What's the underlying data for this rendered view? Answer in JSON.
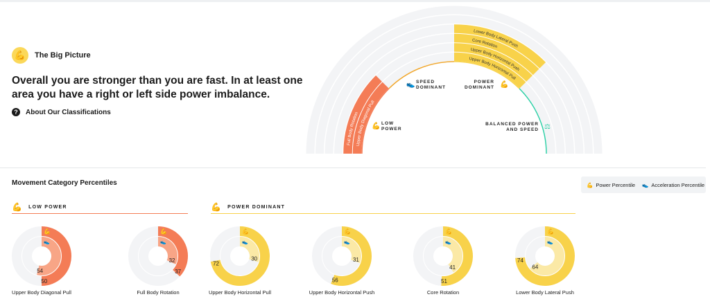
{
  "header": {
    "title": "The Big Picture",
    "headline": "Overall you are stronger than you are fast. In at least one area you have a right or left side power imbalance.",
    "about_link": "About Our Classifications"
  },
  "semicircle": {
    "quadrants": [
      {
        "label1": "LOW",
        "label2": "POWER",
        "color": "#f47c56"
      },
      {
        "label1": "SPEED",
        "label2": "DOMINANT",
        "color": "#f0a830"
      },
      {
        "label1": "POWER",
        "label2": "DOMINANT",
        "color": "#f8d24a"
      },
      {
        "label1": "BALANCED POWER",
        "label2": "AND SPEED",
        "color": "#2ecfa6"
      }
    ],
    "low_power_bands": [
      "Upper Body Diagonal Pull",
      "Full Body Rotation"
    ],
    "power_dominant_bands": [
      "Upper Body Horizontal Pull",
      "Upper Body Horizontal Push",
      "Core Rotation",
      "Lower Body Lateral Push"
    ]
  },
  "section": {
    "title": "Movement Category Percentiles",
    "legend_power": "Power Percentile",
    "legend_accel": "Acceleration Percentile"
  },
  "groups": {
    "low": "LOW POWER",
    "pd": "POWER DOMINANT"
  },
  "chart_data": {
    "type": "donut",
    "series_names": [
      "Power Percentile",
      "Acceleration Percentile"
    ],
    "items": [
      {
        "label": "Upper Body Diagonal Pull",
        "group": "low",
        "power": 50,
        "accel": 54
      },
      {
        "label": "Full Body Rotation",
        "group": "low",
        "power": 37,
        "accel": 32
      },
      {
        "label": "Upper Body Horizontal Pull",
        "group": "pd",
        "power": 72,
        "accel": 30
      },
      {
        "label": "Upper Body Horizontal Push",
        "group": "pd",
        "power": 56,
        "accel": 31
      },
      {
        "label": "Core Rotation",
        "group": "pd",
        "power": 51,
        "accel": 41
      },
      {
        "label": "Lower Body Lateral Push",
        "group": "pd",
        "power": 74,
        "accel": 64
      }
    ]
  },
  "colors": {
    "low": "#f47c56",
    "low_light": "#f8a586",
    "pd": "#f8d24a",
    "pd_light": "#fbe9a6",
    "track": "#f3f4f6"
  }
}
